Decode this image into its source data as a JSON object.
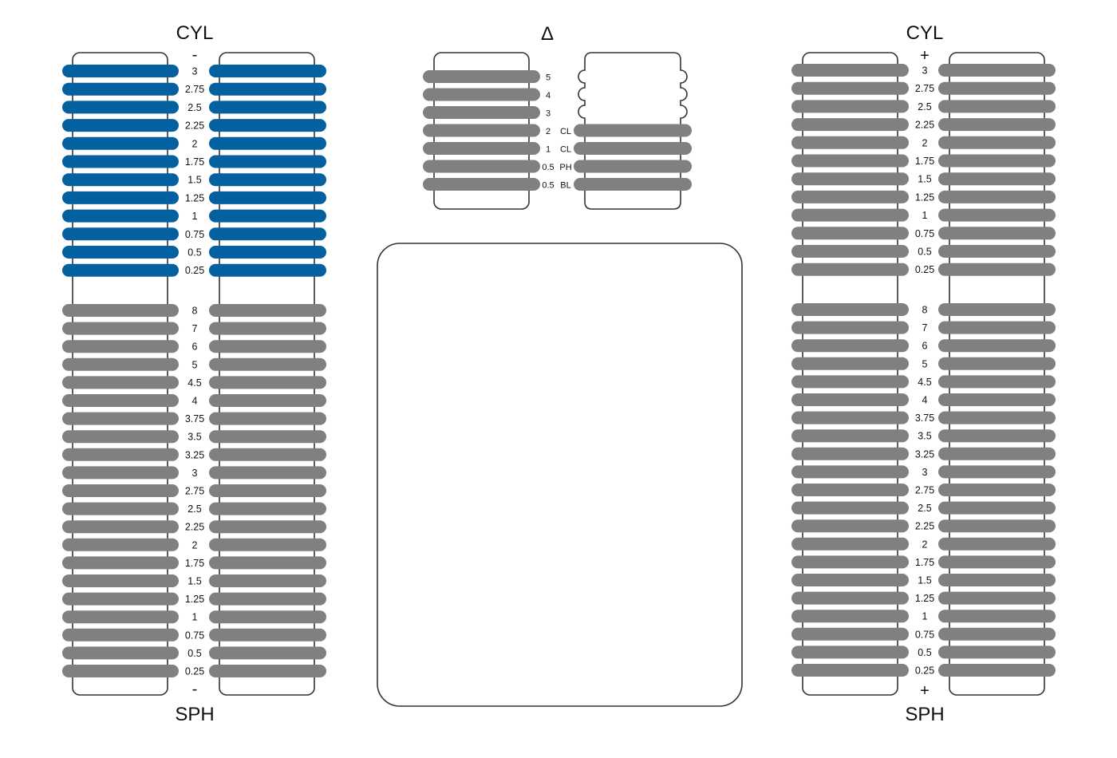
{
  "colors": {
    "active": "#05609f",
    "inactive": "#808080",
    "outline": "#333333",
    "text": "#111111"
  },
  "left_panel": {
    "cyl_title": "CYL",
    "cyl_sign": "-",
    "cyl_values": [
      "3",
      "2.75",
      "2.5",
      "2.25",
      "2",
      "1.75",
      "1.5",
      "1.25",
      "1",
      "0.75",
      "0.5",
      "0.25"
    ],
    "cyl_active": true,
    "sph_values": [
      "8",
      "7",
      "6",
      "5",
      "4.5",
      "4",
      "3.75",
      "3.5",
      "3.25",
      "3",
      "2.75",
      "2.5",
      "2.25",
      "2",
      "1.75",
      "1.5",
      "1.25",
      "1",
      "0.75",
      "0.5",
      "0.25"
    ],
    "sph_active": false,
    "sph_sign": "-",
    "sph_title": "SPH"
  },
  "right_panel": {
    "cyl_title": "CYL",
    "cyl_sign": "+",
    "cyl_values": [
      "3",
      "2.75",
      "2.5",
      "2.25",
      "2",
      "1.75",
      "1.5",
      "1.25",
      "1",
      "0.75",
      "0.5",
      "0.25"
    ],
    "cyl_active": false,
    "sph_values": [
      "8",
      "7",
      "6",
      "5",
      "4.5",
      "4",
      "3.75",
      "3.5",
      "3.25",
      "3",
      "2.75",
      "2.5",
      "2.25",
      "2",
      "1.75",
      "1.5",
      "1.25",
      "1",
      "0.75",
      "0.5",
      "0.25"
    ],
    "sph_active": false,
    "sph_sign": "+",
    "sph_title": "SPH"
  },
  "prism_panel": {
    "title": "Δ",
    "values": [
      "5",
      "4",
      "3",
      "2",
      "1",
      "0.5",
      "0.5"
    ],
    "extra_labels": [
      "CL",
      "CL",
      "PH",
      "BL"
    ]
  },
  "display_box": {}
}
